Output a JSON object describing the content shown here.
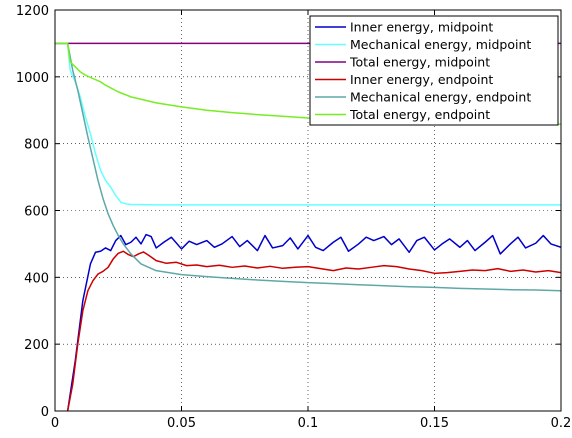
{
  "chart_data": {
    "type": "line",
    "title": "",
    "xlabel": "",
    "ylabel": "",
    "xlim": [
      0,
      0.2
    ],
    "ylim": [
      0,
      1200
    ],
    "xticks": [
      0,
      0.05,
      0.1,
      0.15,
      0.2
    ],
    "xtick_labels": [
      "0",
      "0.05",
      "0.1",
      "0.15",
      "0.2"
    ],
    "yticks": [
      0,
      200,
      400,
      600,
      800,
      1000,
      1200
    ],
    "ytick_labels": [
      "0",
      "200",
      "400",
      "600",
      "800",
      "1000",
      "1200"
    ],
    "grid": true,
    "grid_style": "dotted",
    "legend_position": "top-right",
    "series": [
      {
        "name": "Inner energy, midpoint",
        "color": "#0000cc",
        "x": [
          0.005,
          0.008,
          0.011,
          0.014,
          0.016,
          0.018,
          0.02,
          0.022,
          0.024,
          0.026,
          0.028,
          0.03,
          0.032,
          0.034,
          0.036,
          0.038,
          0.04,
          0.043,
          0.046,
          0.05,
          0.053,
          0.056,
          0.06,
          0.063,
          0.066,
          0.07,
          0.073,
          0.076,
          0.08,
          0.083,
          0.086,
          0.09,
          0.093,
          0.096,
          0.1,
          0.103,
          0.106,
          0.11,
          0.113,
          0.116,
          0.12,
          0.123,
          0.126,
          0.13,
          0.133,
          0.136,
          0.14,
          0.143,
          0.146,
          0.15,
          0.153,
          0.156,
          0.16,
          0.163,
          0.166,
          0.17,
          0.173,
          0.176,
          0.18,
          0.183,
          0.186,
          0.19,
          0.193,
          0.196,
          0.2
        ],
        "values": [
          0,
          150,
          330,
          440,
          475,
          478,
          488,
          480,
          510,
          525,
          498,
          505,
          520,
          500,
          528,
          522,
          488,
          505,
          520,
          485,
          508,
          498,
          510,
          490,
          500,
          522,
          492,
          510,
          480,
          525,
          488,
          495,
          518,
          485,
          525,
          490,
          480,
          505,
          520,
          478,
          500,
          520,
          510,
          522,
          498,
          515,
          475,
          510,
          520,
          482,
          500,
          515,
          490,
          510,
          480,
          505,
          525,
          470,
          500,
          520,
          488,
          502,
          525,
          500,
          490
        ]
      },
      {
        "name": "Mechanical energy, midpoint",
        "color": "#66ffff",
        "x": [
          0,
          0.005,
          0.006,
          0.008,
          0.01,
          0.012,
          0.014,
          0.016,
          0.018,
          0.02,
          0.022,
          0.024,
          0.026,
          0.028,
          0.03,
          0.04,
          0.06,
          0.08,
          0.1,
          0.12,
          0.14,
          0.16,
          0.18,
          0.2
        ],
        "values": [
          1100,
          1100,
          1020,
          985,
          940,
          880,
          830,
          770,
          720,
          690,
          670,
          645,
          625,
          620,
          618,
          617,
          617,
          617,
          617,
          617,
          617,
          617,
          617,
          617
        ]
      },
      {
        "name": "Total energy, midpoint",
        "color": "#800080",
        "x": [
          0,
          0.2
        ],
        "values": [
          1100,
          1100
        ]
      },
      {
        "name": "Inner energy, endpoint",
        "color": "#cc0000",
        "x": [
          0.005,
          0.007,
          0.009,
          0.011,
          0.013,
          0.015,
          0.017,
          0.019,
          0.021,
          0.023,
          0.025,
          0.027,
          0.029,
          0.031,
          0.033,
          0.035,
          0.037,
          0.04,
          0.044,
          0.048,
          0.052,
          0.056,
          0.06,
          0.065,
          0.07,
          0.075,
          0.08,
          0.085,
          0.09,
          0.095,
          0.1,
          0.105,
          0.11,
          0.115,
          0.12,
          0.125,
          0.13,
          0.135,
          0.14,
          0.145,
          0.15,
          0.155,
          0.16,
          0.165,
          0.17,
          0.175,
          0.18,
          0.185,
          0.19,
          0.195,
          0.2
        ],
        "values": [
          0,
          80,
          200,
          300,
          360,
          390,
          410,
          418,
          430,
          455,
          472,
          478,
          468,
          462,
          470,
          476,
          466,
          450,
          442,
          445,
          435,
          437,
          432,
          436,
          430,
          434,
          428,
          433,
          427,
          430,
          432,
          426,
          420,
          428,
          425,
          430,
          435,
          432,
          425,
          420,
          412,
          414,
          418,
          422,
          420,
          426,
          418,
          422,
          416,
          420,
          414
        ]
      },
      {
        "name": "Mechanical energy, endpoint",
        "color": "#5fa8a8",
        "x": [
          0,
          0.005,
          0.007,
          0.009,
          0.011,
          0.013,
          0.015,
          0.017,
          0.019,
          0.021,
          0.023,
          0.025,
          0.027,
          0.03,
          0.034,
          0.04,
          0.05,
          0.06,
          0.07,
          0.08,
          0.09,
          0.1,
          0.11,
          0.12,
          0.13,
          0.14,
          0.15,
          0.16,
          0.17,
          0.18,
          0.19,
          0.2
        ],
        "values": [
          1100,
          1100,
          1020,
          960,
          890,
          820,
          755,
          690,
          635,
          590,
          555,
          525,
          500,
          470,
          440,
          420,
          408,
          402,
          397,
          392,
          388,
          384,
          381,
          378,
          375,
          372,
          370,
          367,
          365,
          363,
          362,
          360
        ]
      },
      {
        "name": "Total energy, endpoint",
        "color": "#77ee22",
        "x": [
          0,
          0.005,
          0.006,
          0.008,
          0.01,
          0.012,
          0.015,
          0.018,
          0.02,
          0.025,
          0.03,
          0.04,
          0.05,
          0.06,
          0.07,
          0.08,
          0.09,
          0.1,
          0.12,
          0.14,
          0.16,
          0.18,
          0.2
        ],
        "values": [
          1100,
          1100,
          1045,
          1030,
          1015,
          1005,
          995,
          985,
          975,
          955,
          940,
          922,
          910,
          900,
          893,
          887,
          882,
          877,
          872,
          868,
          864,
          861,
          858
        ]
      }
    ]
  }
}
